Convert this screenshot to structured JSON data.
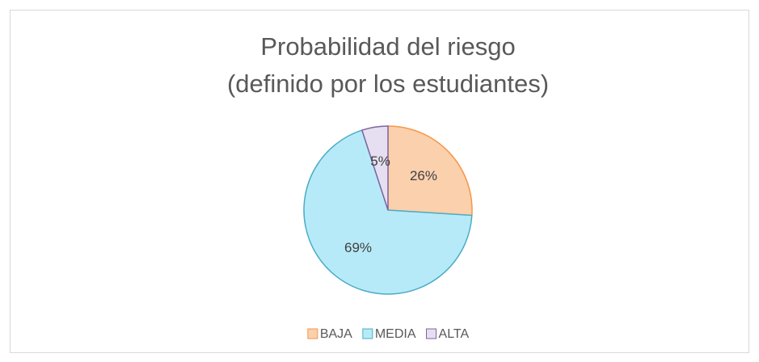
{
  "chart_data": {
    "type": "pie",
    "title": [
      "Probabilidad del riesgo",
      "(definido por los estudiantes)"
    ],
    "categories": [
      "BAJA",
      "MEDIA",
      "ALTA"
    ],
    "values": [
      26,
      69,
      5
    ],
    "value_labels": [
      "26%",
      "69%",
      "5%"
    ],
    "colors": [
      "#fbd0ad",
      "#b7eaf8",
      "#e6dff1"
    ],
    "edge_colors": [
      "#f79646",
      "#4bacc6",
      "#8064a2"
    ],
    "legend": "bottom"
  }
}
